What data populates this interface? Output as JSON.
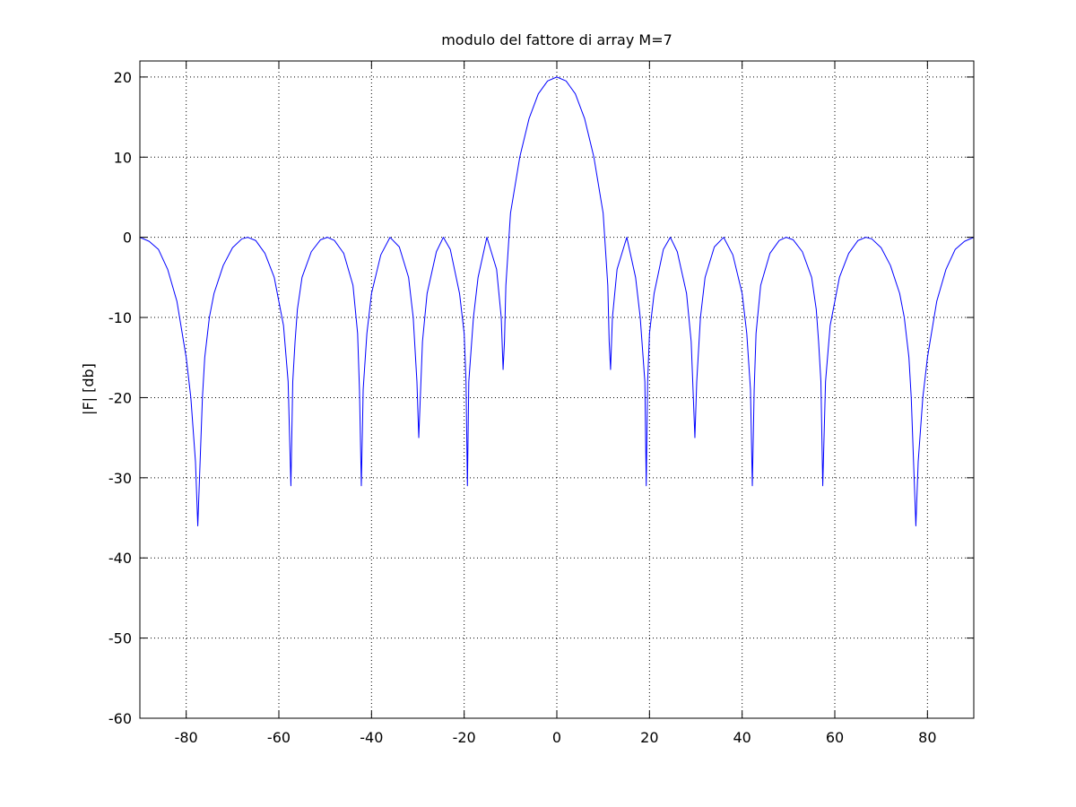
{
  "chart_data": {
    "type": "line",
    "title": "modulo del fattore di array M=7",
    "xlabel": "",
    "ylabel": "|F| [db]",
    "xlim": [
      -90,
      90
    ],
    "ylim": [
      -60,
      22
    ],
    "xticks": [
      -80,
      -60,
      -40,
      -20,
      0,
      20,
      40,
      60,
      80
    ],
    "yticks": [
      -60,
      -50,
      -40,
      -30,
      -20,
      -10,
      0,
      10,
      20
    ],
    "grid": true,
    "grid_style": "dotted",
    "series": [
      {
        "color": "#0000ff",
        "x": [
          -90,
          -88,
          -86,
          -84,
          -82,
          -80,
          -79,
          -78,
          -77.5,
          -77,
          -76.5,
          -76,
          -75,
          -74,
          -72,
          -70,
          -68,
          -66.7,
          -65,
          -63,
          -61,
          -59,
          -58,
          -57.4,
          -57,
          -56.5,
          -56,
          -55,
          -53,
          -51,
          -49.5,
          -48,
          -46,
          -44,
          -43,
          -42.6,
          -42.2,
          -41.8,
          -41,
          -40,
          -38,
          -36,
          -34,
          -32,
          -31,
          -30.2,
          -29.8,
          -29,
          -28,
          -26,
          -24.5,
          -23,
          -21,
          -20,
          -19.6,
          -19.3,
          -19,
          -18,
          -17,
          -15.1,
          -13,
          -12,
          -11.6,
          -11.3,
          -11,
          -10,
          -8,
          -6,
          -4,
          -2,
          0,
          2,
          4,
          6,
          8,
          10,
          11,
          11.3,
          11.6,
          12,
          13,
          15.1,
          17,
          18,
          19,
          19.3,
          19.6,
          20,
          21,
          23,
          24.5,
          26,
          28,
          29,
          29.8,
          30.2,
          31,
          32,
          34,
          36,
          38,
          40,
          41,
          41.8,
          42.2,
          42.6,
          43,
          44,
          46,
          48,
          49.5,
          51,
          53,
          55,
          56,
          56.5,
          57,
          57.4,
          58,
          59,
          61,
          63,
          65,
          66.7,
          68,
          70,
          72,
          74,
          75,
          76,
          76.5,
          77,
          77.5,
          78,
          79,
          80,
          82,
          84,
          86,
          88,
          90
        ],
        "y": [
          0,
          -0.5,
          -1.5,
          -4,
          -8,
          -15,
          -20,
          -28,
          -36,
          -28,
          -20,
          -15,
          -10,
          -7,
          -3.5,
          -1.3,
          -0.2,
          0,
          -0.4,
          -2,
          -5,
          -11,
          -18,
          -31,
          -18,
          -13,
          -9,
          -5,
          -1.8,
          -0.3,
          0,
          -0.4,
          -2,
          -6,
          -12,
          -19,
          -31,
          -19,
          -12,
          -7,
          -2.2,
          0,
          -1.2,
          -5,
          -10,
          -18,
          -25,
          -13,
          -7,
          -1.8,
          0,
          -1.5,
          -7,
          -12,
          -18,
          -31,
          -18,
          -10,
          -5,
          0,
          -4,
          -10,
          -16.5,
          -13,
          -6,
          3,
          10,
          14.8,
          17.9,
          19.5,
          20,
          19.5,
          17.9,
          14.8,
          10,
          3,
          -6,
          -13,
          -16.5,
          -10,
          -4,
          0,
          -5,
          -10,
          -18,
          -31,
          -18,
          -12,
          -7,
          -1.5,
          0,
          -1.8,
          -7,
          -13,
          -25,
          -18,
          -10,
          -5,
          -1.2,
          0,
          -2.2,
          -7,
          -12,
          -19,
          -31,
          -19,
          -12,
          -6,
          -2,
          -0.4,
          0,
          -0.3,
          -1.8,
          -5,
          -9,
          -13,
          -18,
          -31,
          -18,
          -11,
          -5,
          -2,
          -0.4,
          0,
          -0.2,
          -1.3,
          -3.5,
          -7,
          -10,
          -15,
          -20,
          -28,
          -36,
          -28,
          -20,
          -15,
          -8,
          -4,
          -1.5,
          -0.5,
          0
        ]
      }
    ]
  }
}
